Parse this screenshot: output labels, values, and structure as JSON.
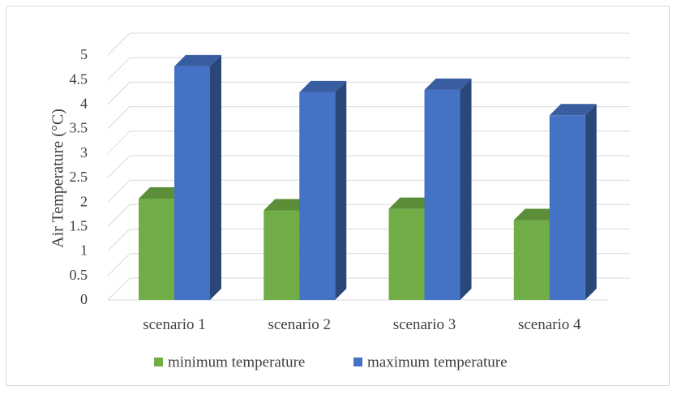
{
  "chart_data": {
    "type": "bar",
    "style": "3d-clustered-column",
    "categories": [
      "scenario 1",
      "scenario 2",
      "scenario 3",
      "scenario 4"
    ],
    "series": [
      {
        "name": "minimum temperature",
        "color": "#70ad47",
        "values": [
          2.07,
          1.83,
          1.86,
          1.63
        ]
      },
      {
        "name": "maximum temperature",
        "color": "#4472c4",
        "values": [
          4.77,
          4.24,
          4.29,
          3.77
        ]
      }
    ],
    "ylabel": "Air Temperature (°C)",
    "xlabel": "",
    "ylim": [
      0,
      5
    ],
    "yticks": [
      "0",
      "0.5",
      "1",
      "1.5",
      "2",
      "2.5",
      "3",
      "3.5",
      "4",
      "4.5",
      "5"
    ],
    "grid": true,
    "legend": "bottom"
  }
}
